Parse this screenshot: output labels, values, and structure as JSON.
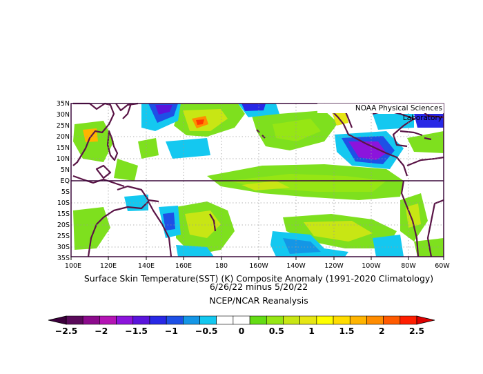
{
  "map": {
    "credit": "NOAA Physical Sciences Laboratory",
    "lat_labels": [
      "35N",
      "30N",
      "25N",
      "20N",
      "15N",
      "10N",
      "5N",
      "EQ",
      "5S",
      "10S",
      "15S",
      "20S",
      "25S",
      "30S",
      "35S"
    ],
    "lon_labels": [
      "100E",
      "120E",
      "140E",
      "160E",
      "180",
      "160W",
      "140W",
      "120W",
      "100W",
      "80W",
      "60W"
    ],
    "extent": {
      "lon_min": 100,
      "lon_max": 300,
      "lat_min": -35,
      "lat_max": 35
    }
  },
  "caption": {
    "line1": "Surface Skin Temperature(SST) (K) Composite Anomaly (1991-2020 Climatology)",
    "line2": "6/26/22 minus 5/20/22",
    "line3": "NCEP/NCAR Reanalysis"
  },
  "colorbar": {
    "labels": [
      "-2.5",
      "-2",
      "-1.5",
      "-1",
      "-0.5",
      "0",
      "0.5",
      "1",
      "1.5",
      "2",
      "2.5"
    ],
    "colors": [
      "#5a0a5a",
      "#8c0a8c",
      "#b414b4",
      "#8c14dc",
      "#5a14dc",
      "#2828e6",
      "#1e50e6",
      "#1496e6",
      "#14c8f0",
      "#ffffff",
      "#ffffff",
      "#64dc14",
      "#96e614",
      "#c8e614",
      "#e6e614",
      "#ffff00",
      "#ffdc00",
      "#ffb400",
      "#ff8c00",
      "#ff5a00",
      "#ff1e00"
    ],
    "left_arrow_color": "#3c003c",
    "right_arrow_color": "#dc0000"
  },
  "colors": {
    "coastline": "#5a1446",
    "frame": "#3c0a3c",
    "grid": "#9a9a9a"
  }
}
